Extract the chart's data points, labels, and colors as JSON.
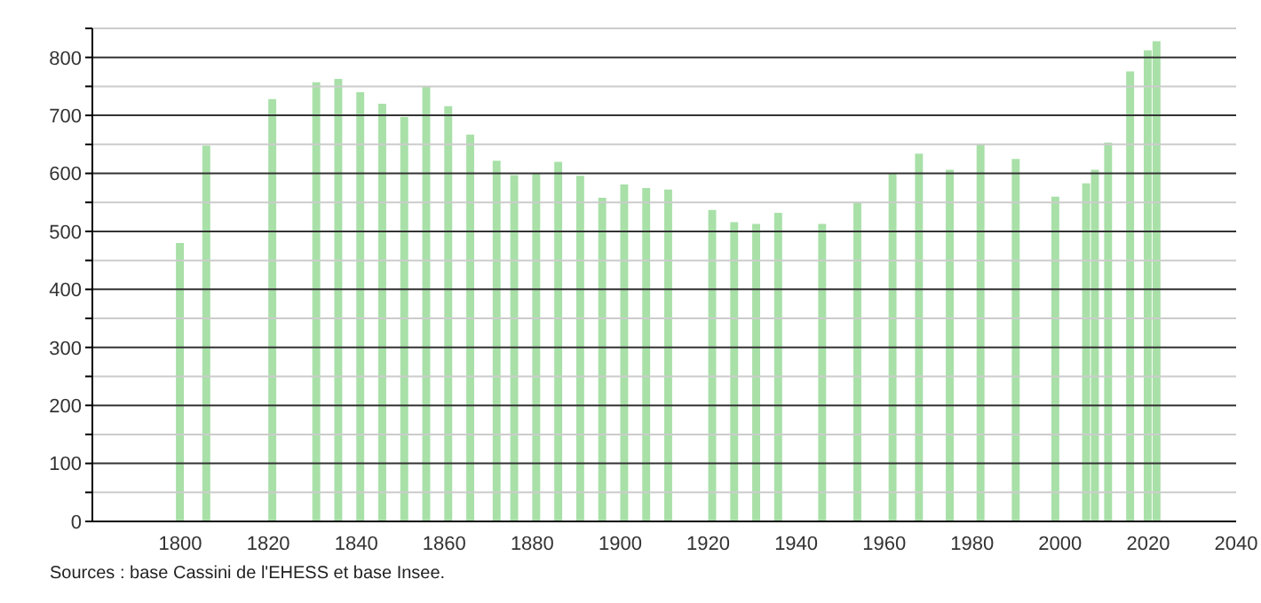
{
  "chart_data": {
    "type": "bar",
    "x": [
      1800,
      1806,
      1821,
      1831,
      1836,
      1841,
      1846,
      1851,
      1856,
      1861,
      1866,
      1872,
      1876,
      1881,
      1886,
      1891,
      1896,
      1901,
      1906,
      1911,
      1921,
      1926,
      1931,
      1936,
      1946,
      1954,
      1962,
      1968,
      1975,
      1982,
      1990,
      1999,
      2006,
      2008,
      2011,
      2016,
      2020,
      2022
    ],
    "values": [
      480,
      648,
      728,
      757,
      763,
      740,
      720,
      697,
      750,
      716,
      667,
      622,
      597,
      600,
      620,
      596,
      558,
      581,
      575,
      572,
      537,
      516,
      513,
      532,
      513,
      550,
      600,
      634,
      606,
      650,
      625,
      560,
      583,
      606,
      653,
      776,
      812,
      828
    ],
    "color": "#a8e0a8",
    "xlim": [
      1780,
      2040
    ],
    "xticks": [
      1800,
      1820,
      1840,
      1860,
      1880,
      1900,
      1920,
      1940,
      1960,
      1980,
      2000,
      2020,
      2040
    ],
    "ylim": [
      0,
      850
    ],
    "yticks": [
      0,
      {
        "value": 50,
        "label": null
      },
      100,
      {
        "value": 150,
        "label": null
      },
      200,
      {
        "value": 250,
        "label": null
      },
      300,
      {
        "value": 350,
        "label": null
      },
      400,
      {
        "value": 450,
        "label": null
      },
      500,
      {
        "value": 550,
        "label": null
      },
      600,
      {
        "value": 650,
        "label": null
      },
      700,
      {
        "value": 750,
        "label": null
      },
      800,
      {
        "value": 850,
        "label": null
      }
    ],
    "grid": "y",
    "annotations": [
      "Sources : base Cassini de l'EHESS et base Insee."
    ]
  }
}
